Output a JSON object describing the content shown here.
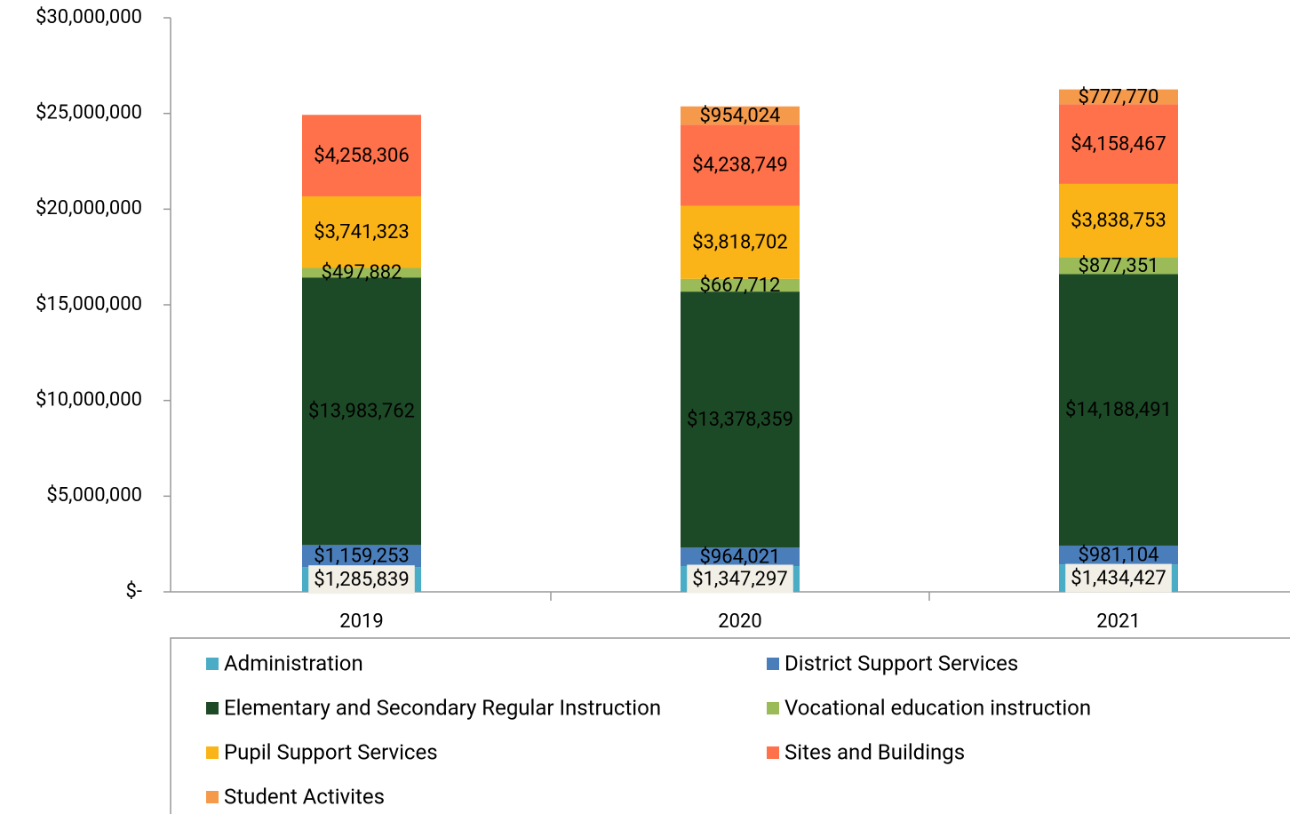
{
  "chart_data": {
    "type": "stacked_bar",
    "categories": [
      "2019",
      "2020",
      "2021"
    ],
    "series": [
      {
        "name": "Administration",
        "color": "#4bacc6",
        "label_background": "#f2efe6",
        "values": [
          1285839,
          1347297,
          1434427
        ],
        "value_labels": [
          "$1,285,839",
          "$1,347,297",
          "$1,434,427"
        ]
      },
      {
        "name": "District Support Services",
        "color": "#4a7ebb",
        "values": [
          1159253,
          964021,
          981104
        ],
        "value_labels": [
          "$1,159,253",
          "$964,021",
          "$981,104"
        ]
      },
      {
        "name": "Elementary and Secondary Regular Instruction",
        "color": "#1d4a26",
        "values": [
          13983762,
          13378359,
          14188491
        ],
        "value_labels": [
          "$13,983,762",
          "$13,378,359",
          "$14,188,491"
        ]
      },
      {
        "name": "Vocational education instruction",
        "color": "#9bbb59",
        "values": [
          497882,
          667712,
          877351
        ],
        "value_labels": [
          "$497,882",
          "$667,712",
          "$877,351"
        ]
      },
      {
        "name": "Pupil Support Services",
        "color": "#fbb417",
        "values": [
          3741323,
          3818702,
          3838753
        ],
        "value_labels": [
          "$3,741,323",
          "$3,818,702",
          "$3,838,753"
        ]
      },
      {
        "name": "Sites and Buildings",
        "color": "#fe714a",
        "values": [
          4258306,
          4238749,
          4158467
        ],
        "value_labels": [
          "$4,258,306",
          "$4,238,749",
          "$4,158,467"
        ]
      },
      {
        "name": "Student Activites",
        "color": "#f5994a",
        "values": [
          null,
          954024,
          777770
        ],
        "value_labels": [
          null,
          "$954,024",
          "$777,770"
        ]
      }
    ],
    "ylim": [
      0,
      30000000
    ],
    "yticks": [
      {
        "value": 0,
        "label": "$-"
      },
      {
        "value": 5000000,
        "label": "$5,000,000"
      },
      {
        "value": 10000000,
        "label": "$10,000,000"
      },
      {
        "value": 15000000,
        "label": "$15,000,000"
      },
      {
        "value": 20000000,
        "label": "$20,000,000"
      },
      {
        "value": 25000000,
        "label": "$25,000,000"
      },
      {
        "value": 30000000,
        "label": "$30,000,000"
      }
    ],
    "grid": false,
    "legend": "bottom"
  }
}
